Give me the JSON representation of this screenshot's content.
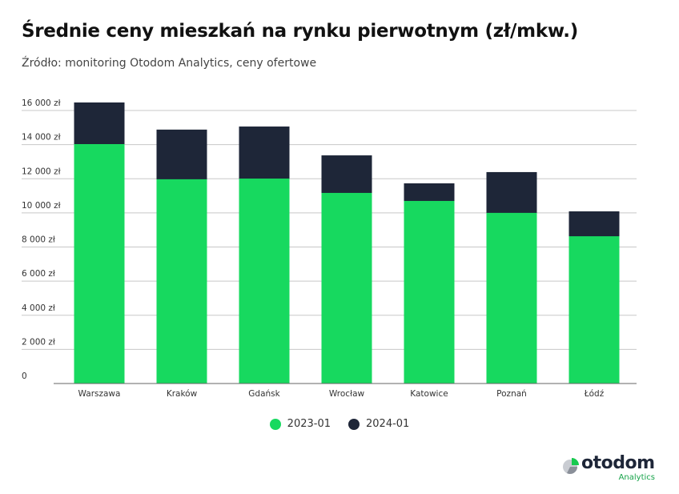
{
  "title": "Średnie ceny mieszkań na rynku pierwotnym (zł/mkw.)",
  "subtitle": "Źródło: monitoring Otodom Analytics, ceny ofertowe",
  "logo": {
    "name": "otodom",
    "sub": "Analytics"
  },
  "colors": {
    "s2023": "#17d95f",
    "s2024": "#1e2638",
    "grid": "#c8c8c8"
  },
  "chart_data": {
    "type": "bar",
    "mode": "overlapping",
    "title": "Średnie ceny mieszkań na rynku pierwotnym (zł/mkw.)",
    "categories": [
      "Warszawa",
      "Kraków",
      "Gdańsk",
      "Wrocław",
      "Katowice",
      "Poznań",
      "Łódź"
    ],
    "series": [
      {
        "name": "2023-01",
        "values": [
          14030,
          11970,
          12010,
          11170,
          10700,
          10000,
          8630
        ]
      },
      {
        "name": "2024-01",
        "values": [
          16470,
          14880,
          15060,
          13370,
          11730,
          12390,
          10090
        ]
      }
    ],
    "yticks": [
      0,
      2000,
      4000,
      6000,
      8000,
      10000,
      12000,
      14000,
      16000
    ],
    "ytick_labels": [
      "0",
      "2 000 zł",
      "4 000 zł",
      "6 000 zł",
      "8 000 zł",
      "10 000 zł",
      "12 000 zł",
      "14 000 zł",
      "16 000 zł"
    ],
    "ylim": [
      0,
      16000
    ],
    "grid": true,
    "legend": "bottom-center",
    "xlabel": "",
    "ylabel": ""
  }
}
